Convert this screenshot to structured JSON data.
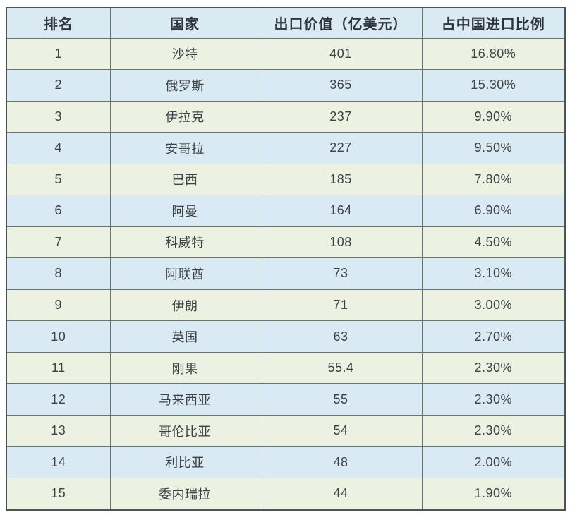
{
  "theme": {
    "page_bg": "#ffffff",
    "header_bg": "#d9eaf3",
    "row_cream": "#edf1e1",
    "row_blue": "#d9eaf4",
    "grid_border": "#68746f",
    "outer_border": "#4c5456",
    "header_text": "#2e353d",
    "body_text": "#3e4245"
  },
  "table": {
    "columns": [
      {
        "key": "rank",
        "label": "排名"
      },
      {
        "key": "country",
        "label": "国家"
      },
      {
        "key": "value",
        "label": "出口价值（亿美元）"
      },
      {
        "key": "share",
        "label": "占中国进口比例"
      }
    ],
    "rows": [
      {
        "rank": "1",
        "country": "沙特",
        "value": "401",
        "share": "16.80%"
      },
      {
        "rank": "2",
        "country": "俄罗斯",
        "value": "365",
        "share": "15.30%"
      },
      {
        "rank": "3",
        "country": "伊拉克",
        "value": "237",
        "share": "9.90%"
      },
      {
        "rank": "4",
        "country": "安哥拉",
        "value": "227",
        "share": "9.50%"
      },
      {
        "rank": "5",
        "country": "巴西",
        "value": "185",
        "share": "7.80%"
      },
      {
        "rank": "6",
        "country": "阿曼",
        "value": "164",
        "share": "6.90%"
      },
      {
        "rank": "7",
        "country": "科威特",
        "value": "108",
        "share": "4.50%"
      },
      {
        "rank": "8",
        "country": "阿联酋",
        "value": "73",
        "share": "3.10%"
      },
      {
        "rank": "9",
        "country": "伊朗",
        "value": "71",
        "share": "3.00%"
      },
      {
        "rank": "10",
        "country": "英国",
        "value": "63",
        "share": "2.70%"
      },
      {
        "rank": "11",
        "country": "刚果",
        "value": "55.4",
        "share": "2.30%"
      },
      {
        "rank": "12",
        "country": "马来西亚",
        "value": "55",
        "share": "2.30%"
      },
      {
        "rank": "13",
        "country": "哥伦比亚",
        "value": "54",
        "share": "2.30%"
      },
      {
        "rank": "14",
        "country": "利比亚",
        "value": "48",
        "share": "2.00%"
      },
      {
        "rank": "15",
        "country": "委内瑞拉",
        "value": "44",
        "share": "1.90%"
      }
    ]
  },
  "chart_data": {
    "type": "table",
    "title": "",
    "columns": [
      "排名",
      "国家",
      "出口价值（亿美元）",
      "占中国进口比例"
    ],
    "rows": [
      [
        1,
        "沙特",
        401,
        "16.80%"
      ],
      [
        2,
        "俄罗斯",
        365,
        "15.30%"
      ],
      [
        3,
        "伊拉克",
        237,
        "9.90%"
      ],
      [
        4,
        "安哥拉",
        227,
        "9.50%"
      ],
      [
        5,
        "巴西",
        185,
        "7.80%"
      ],
      [
        6,
        "阿曼",
        164,
        "6.90%"
      ],
      [
        7,
        "科威特",
        108,
        "4.50%"
      ],
      [
        8,
        "阿联酋",
        73,
        "3.10%"
      ],
      [
        9,
        "伊朗",
        71,
        "3.00%"
      ],
      [
        10,
        "英国",
        63,
        "2.70%"
      ],
      [
        11,
        "刚果",
        55.4,
        "2.30%"
      ],
      [
        12,
        "马来西亚",
        55,
        "2.30%"
      ],
      [
        13,
        "哥伦比亚",
        54,
        "2.30%"
      ],
      [
        14,
        "利比亚",
        48,
        "2.00%"
      ],
      [
        15,
        "委内瑞拉",
        44,
        "1.90%"
      ]
    ],
    "export_values": [
      401,
      365,
      237,
      227,
      185,
      164,
      108,
      73,
      71,
      63,
      55.4,
      55,
      54,
      48,
      44
    ],
    "share_percent": [
      16.8,
      15.3,
      9.9,
      9.5,
      7.8,
      6.9,
      4.5,
      3.1,
      3.0,
      2.7,
      2.3,
      2.3,
      2.3,
      2.0,
      1.9
    ]
  }
}
